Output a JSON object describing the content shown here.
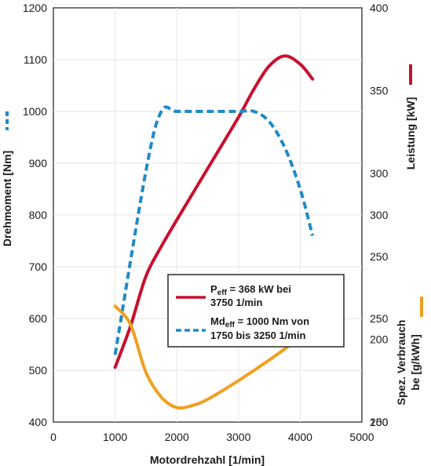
{
  "chart_data": {
    "type": "line",
    "xlabel": "Motordrehzahl [1/min]",
    "xlim": [
      0,
      5000
    ],
    "xticks": [
      0,
      1000,
      2000,
      3000,
      4000,
      5000
    ],
    "axes": {
      "left": {
        "label": "Drehmoment [Nm]",
        "lim": [
          400,
          1200
        ],
        "ticks": [
          400,
          500,
          600,
          700,
          800,
          900,
          1000,
          1100,
          1200
        ]
      },
      "right_top": {
        "label": "Leistung [kW]",
        "lim": [
          150,
          400
        ],
        "ticks": [
          150,
          200,
          250,
          300,
          350,
          400
        ]
      },
      "right_bottom": {
        "label_line1": "Spez. Verbrauch",
        "label_line2": "be [g/kWh]",
        "lim": [
          200,
          400
        ],
        "ticks": [
          200,
          250,
          300
        ]
      }
    },
    "series": [
      {
        "key": "power",
        "axis": "right_top",
        "color": "#c8102e",
        "style": "solid",
        "x": [
          1000,
          1250,
          1500,
          1750,
          2000,
          2500,
          3000,
          3250,
          3500,
          3750,
          4000,
          4200
        ],
        "y": [
          183,
          208,
          238,
          256,
          272,
          303,
          334,
          351,
          365,
          371,
          366,
          357
        ]
      },
      {
        "key": "torque",
        "axis": "left",
        "color": "#1f8ac9",
        "style": "dashed",
        "x": [
          1000,
          1500,
          1750,
          2000,
          2500,
          3000,
          3250,
          3500,
          3750,
          4000,
          4200
        ],
        "y": [
          530,
          885,
          1000,
          1000,
          1000,
          1000,
          1000,
          980,
          930,
          850,
          760
        ]
      },
      {
        "key": "consumption",
        "axis": "right_bottom",
        "color": "#f0a020",
        "style": "solid",
        "x": [
          1000,
          1250,
          1500,
          1750,
          2000,
          2250,
          2500,
          3000,
          3500,
          4000,
          4200
        ],
        "y": [
          256,
          247,
          224,
          212,
          207,
          208,
          211,
          220,
          230,
          241,
          248
        ]
      }
    ],
    "legend": [
      {
        "key": "power",
        "main": "P",
        "sub": "eff",
        "rest": " = 368 kW bei",
        "line2": "3750 1/min"
      },
      {
        "key": "torque",
        "main": "Md",
        "sub": "eff",
        "rest": " = 1000 Nm von",
        "line2": "1750 bis 3250 1/min"
      }
    ]
  }
}
